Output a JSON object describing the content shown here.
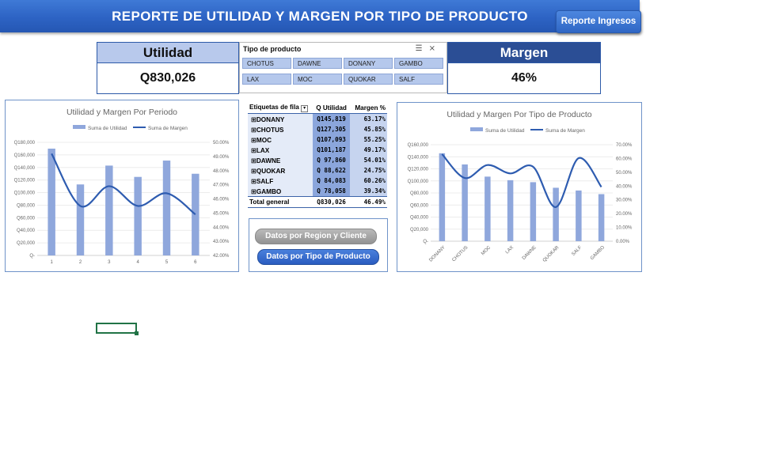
{
  "header": {
    "title": "REPORTE DE UTILIDAD Y MARGEN POR TIPO DE PRODUCTO",
    "button_label": "Reporte Ingresos"
  },
  "kpis": {
    "utilidad_label": "Utilidad",
    "utilidad_value": "Q830,026",
    "margen_label": "Margen",
    "margen_value": "46%"
  },
  "slicer": {
    "title": "Tipo de producto",
    "items": [
      "CHOTUS",
      "DAWNE",
      "DONANY",
      "GAMBO",
      "LAX",
      "MOC",
      "QUOKAR",
      "SALF"
    ]
  },
  "pivot": {
    "headers": [
      "Etiquetas de fila",
      "Q Utilidad",
      "Margen %"
    ],
    "rows": [
      {
        "label": "DONANY",
        "utilidad": "Q145,819",
        "margen": "63.17%"
      },
      {
        "label": "CHOTUS",
        "utilidad": "Q127,305",
        "margen": "45.85%"
      },
      {
        "label": "MOC",
        "utilidad": "Q107,093",
        "margen": "55.25%"
      },
      {
        "label": "LAX",
        "utilidad": "Q101,187",
        "margen": "49.17%"
      },
      {
        "label": "DAWNE",
        "utilidad": "Q 97,860",
        "margen": "54.01%"
      },
      {
        "label": "QUOKAR",
        "utilidad": "Q 88,622",
        "margen": "24.75%"
      },
      {
        "label": "SALF",
        "utilidad": "Q 84,083",
        "margen": "60.26%"
      },
      {
        "label": "GAMBO",
        "utilidad": "Q 78,058",
        "margen": "39.34%"
      }
    ],
    "total": {
      "label": "Total general",
      "utilidad": "Q830,026",
      "margen": "46.49%"
    }
  },
  "buttons": {
    "region_label": "Datos por Region y Cliente",
    "tipo_label": "Datos por Tipo de Producto"
  },
  "colors": {
    "banner": "#2d63c4",
    "bar": "#8fa7dc",
    "line": "#2e5cb0",
    "kpi_head_light": "#b8c9ec",
    "kpi_head_dark": "#2b4e95"
  },
  "chart_data": [
    {
      "type": "bar",
      "title": "Utilidad y Margen Por Periodo",
      "legend": [
        "Suma de Utilidad",
        "Suma de Margen"
      ],
      "legend_position": "top",
      "categories": [
        "1",
        "2",
        "3",
        "4",
        "5",
        "6"
      ],
      "series": [
        {
          "name": "Suma de Utilidad",
          "type": "bar",
          "axis": "left",
          "values": [
            170000,
            113000,
            143000,
            125000,
            151000,
            130000
          ]
        },
        {
          "name": "Suma de Margen",
          "type": "line",
          "axis": "right",
          "values": [
            0.492,
            0.455,
            0.469,
            0.455,
            0.464,
            0.449
          ]
        }
      ],
      "y_left": {
        "min": 0,
        "max": 180000,
        "ticks": [
          "Q-",
          "Q20,000",
          "Q40,000",
          "Q60,000",
          "Q80,000",
          "Q100,000",
          "Q120,000",
          "Q140,000",
          "Q160,000",
          "Q180,000"
        ]
      },
      "y_right": {
        "min": 0.42,
        "max": 0.5,
        "ticks": [
          "42.00%",
          "43.00%",
          "44.00%",
          "45.00%",
          "46.00%",
          "47.00%",
          "48.00%",
          "49.00%",
          "50.00%"
        ]
      }
    },
    {
      "type": "bar",
      "title": "Utilidad y Margen Por Tipo de Producto",
      "legend": [
        "Suma de Utilidad",
        "Suma de Margen"
      ],
      "legend_position": "top",
      "categories": [
        "DONANY",
        "CHOTUS",
        "MOC",
        "LAX",
        "DAWNE",
        "QUOKAR",
        "SALF",
        "GAMBO"
      ],
      "series": [
        {
          "name": "Suma de Utilidad",
          "type": "bar",
          "axis": "left",
          "values": [
            145819,
            127305,
            107093,
            101187,
            97860,
            88622,
            84083,
            78058
          ]
        },
        {
          "name": "Suma de Margen",
          "type": "line",
          "axis": "right",
          "values": [
            0.6317,
            0.4585,
            0.5525,
            0.4917,
            0.5401,
            0.2475,
            0.6026,
            0.3934
          ]
        }
      ],
      "y_left": {
        "min": 0,
        "max": 160000,
        "ticks": [
          "Q-",
          "Q20,000",
          "Q40,000",
          "Q60,000",
          "Q80,000",
          "Q100,000",
          "Q120,000",
          "Q140,000",
          "Q160,000"
        ]
      },
      "y_right": {
        "min": 0,
        "max": 0.7,
        "ticks": [
          "0.00%",
          "10.00%",
          "20.00%",
          "30.00%",
          "40.00%",
          "50.00%",
          "60.00%",
          "70.00%"
        ]
      }
    }
  ]
}
